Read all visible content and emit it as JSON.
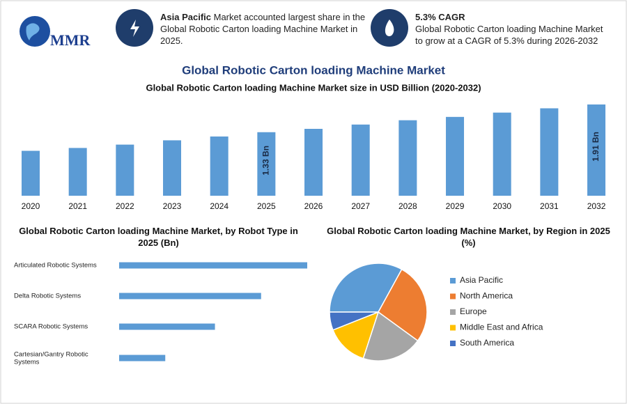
{
  "header": {
    "logo": "MMR",
    "fact1": {
      "bold": "Asia Pacific",
      "text": "Market accounted largest share in the Global Robotic Carton loading Machine Market in 2025."
    },
    "fact2": {
      "bold": "5.3% CAGR",
      "text": "Global Robotic Carton loading Machine Market to grow at a CAGR of 5.3% during 2026-2032"
    }
  },
  "chart_data": [
    {
      "type": "bar",
      "title": "Global Robotic Carton loading Machine Market",
      "subtitle": "Global Robotic Carton loading Machine Market size in USD Billion (2020-2032)",
      "categories": [
        "2020",
        "2021",
        "2022",
        "2023",
        "2024",
        "2025",
        "2026",
        "2027",
        "2028",
        "2029",
        "2030",
        "2031",
        "2032"
      ],
      "values": [
        0.94,
        1.0,
        1.07,
        1.16,
        1.24,
        1.33,
        1.4,
        1.49,
        1.58,
        1.65,
        1.74,
        1.83,
        1.91
      ],
      "value_labels": [
        null,
        null,
        null,
        null,
        null,
        "1.33 Bn",
        null,
        null,
        null,
        null,
        null,
        null,
        "1.91 Bn"
      ],
      "color": "#5b9bd5"
    },
    {
      "type": "hbar",
      "title": "Global Robotic Carton loading Machine Market, by Robot Type in 2025 (Bn)",
      "categories": [
        "Articulated Robotic Systems",
        "Delta Robotic Systems",
        "SCARA Robotic Systems",
        "Cartesian/Gantry Robotic Systems"
      ],
      "values": [
        0.53,
        0.4,
        0.27,
        0.13
      ],
      "color": "#5b9bd5"
    },
    {
      "type": "pie",
      "title": "Global Robotic Carton loading Machine Market, by Region in 2025 (%)",
      "categories": [
        "Asia Pacific",
        "North America",
        "Europe",
        "Middle East and Africa",
        "South America"
      ],
      "values": [
        33,
        27,
        20,
        14,
        6
      ],
      "colors": [
        "#5b9bd5",
        "#ed7d31",
        "#a5a5a5",
        "#ffc000",
        "#4472c4"
      ]
    }
  ]
}
